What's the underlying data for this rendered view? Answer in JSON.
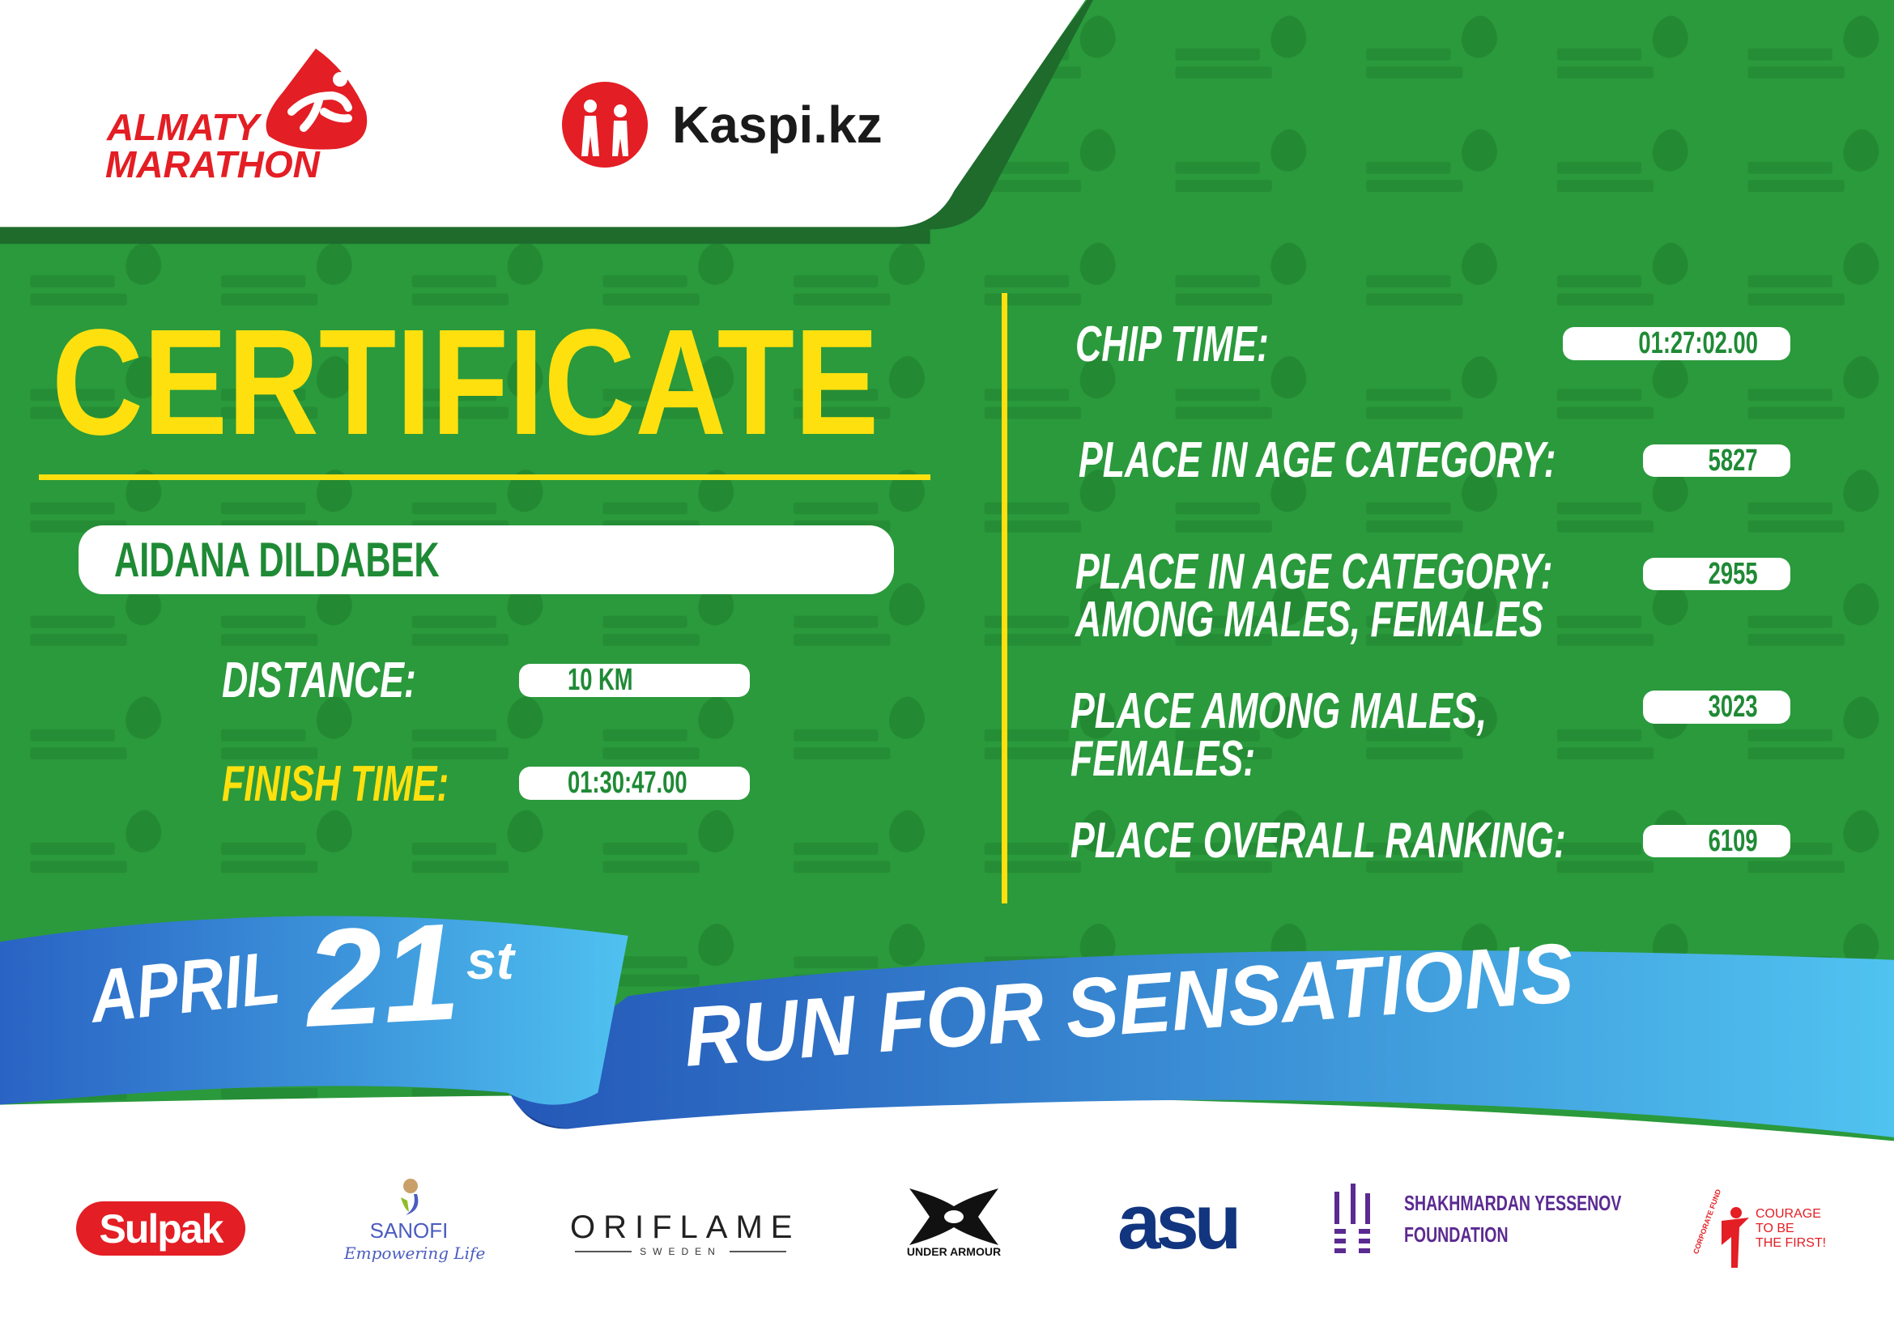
{
  "header": {
    "event_logo": "ALMATY MARATHON",
    "event_logo_line1": "ALMATY",
    "event_logo_line2": "MARATHON",
    "sponsor_logo": "Kaspi.kz"
  },
  "certificate": {
    "title": "CERTIFICATE",
    "participant_name": "AIDANA DILDABEK",
    "distance_label": "DISTANCE:",
    "distance_value": "10 KM",
    "finish_time_label": "FINISH TIME:",
    "finish_time_value": "01:30:47.00"
  },
  "results": {
    "chip_time_label": "CHIP TIME:",
    "chip_time_value": "01:27:02.00",
    "age_category_label": "PLACE IN AGE CATEGORY:",
    "age_category_value": "5827",
    "age_gender_label_line1": "PLACE IN AGE CATEGORY:",
    "age_gender_label_line2": "AMONG MALES, FEMALES",
    "age_gender_value": "2955",
    "gender_label_line1": "PLACE AMONG MALES,",
    "gender_label_line2": "FEMALES:",
    "gender_value": "3023",
    "overall_label": "PLACE OVERALL RANKING:",
    "overall_value": "6109"
  },
  "banner": {
    "month": "APRIL",
    "day": "21",
    "suffix": "st",
    "slogan": "RUN FOR SENSATIONS"
  },
  "sponsors": {
    "sulpak": "Sulpak",
    "sanofi": "SANOFI",
    "sanofi_tagline": "Empowering Life",
    "oriflame": "ORIFLAME",
    "oriflame_sub": "SWEDEN",
    "under_armour": "UNDER ARMOUR",
    "asu": "asu",
    "yessenov_line1": "SHAKHMARDAN YESSENOV",
    "yessenov_line2": "FOUNDATION",
    "courage_fund": "CORPORATE FUND",
    "courage_line1": "COURAGE",
    "courage_line2": "TO BE",
    "courage_line3": "THE FIRST!"
  },
  "colors": {
    "green": "#2a9a3c",
    "yellow": "#ffe00f",
    "red": "#e31e24",
    "blue": "#2f7fd0"
  }
}
